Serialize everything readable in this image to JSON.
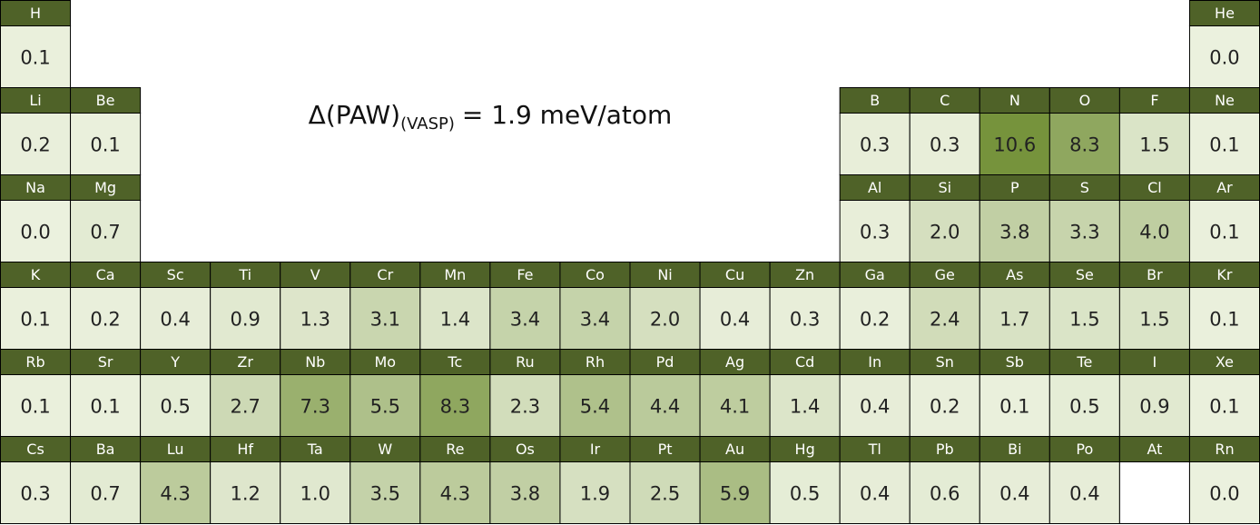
{
  "title": {
    "main": "Δ(PAW)",
    "sub": "(VASP)",
    "rest": "= 1.9 meV/atom"
  },
  "color_scale": [
    "#ebf1de",
    "#76933c"
  ],
  "header_color": "#4f6228",
  "periods": [
    [
      {
        "s": "H",
        "v": "0.1"
      },
      {
        "s": "He",
        "v": "0.0"
      }
    ],
    [
      {
        "s": "Li",
        "v": "0.2"
      },
      {
        "s": "Be",
        "v": "0.1"
      },
      {
        "s": "B",
        "v": "0.3"
      },
      {
        "s": "C",
        "v": "0.3"
      },
      {
        "s": "N",
        "v": "10.6"
      },
      {
        "s": "O",
        "v": "8.3"
      },
      {
        "s": "F",
        "v": "1.5"
      },
      {
        "s": "Ne",
        "v": "0.1"
      }
    ],
    [
      {
        "s": "Na",
        "v": "0.0"
      },
      {
        "s": "Mg",
        "v": "0.7"
      },
      {
        "s": "Al",
        "v": "0.3"
      },
      {
        "s": "Si",
        "v": "2.0"
      },
      {
        "s": "P",
        "v": "3.8"
      },
      {
        "s": "S",
        "v": "3.3"
      },
      {
        "s": "Cl",
        "v": "4.0"
      },
      {
        "s": "Ar",
        "v": "0.1"
      }
    ],
    [
      {
        "s": "K",
        "v": "0.1"
      },
      {
        "s": "Ca",
        "v": "0.2"
      },
      {
        "s": "Sc",
        "v": "0.4"
      },
      {
        "s": "Ti",
        "v": "0.9"
      },
      {
        "s": "V",
        "v": "1.3"
      },
      {
        "s": "Cr",
        "v": "3.1"
      },
      {
        "s": "Mn",
        "v": "1.4"
      },
      {
        "s": "Fe",
        "v": "3.4"
      },
      {
        "s": "Co",
        "v": "3.4"
      },
      {
        "s": "Ni",
        "v": "2.0"
      },
      {
        "s": "Cu",
        "v": "0.4"
      },
      {
        "s": "Zn",
        "v": "0.3"
      },
      {
        "s": "Ga",
        "v": "0.2"
      },
      {
        "s": "Ge",
        "v": "2.4"
      },
      {
        "s": "As",
        "v": "1.7"
      },
      {
        "s": "Se",
        "v": "1.5"
      },
      {
        "s": "Br",
        "v": "1.5"
      },
      {
        "s": "Kr",
        "v": "0.1"
      }
    ],
    [
      {
        "s": "Rb",
        "v": "0.1"
      },
      {
        "s": "Sr",
        "v": "0.1"
      },
      {
        "s": "Y",
        "v": "0.5"
      },
      {
        "s": "Zr",
        "v": "2.7"
      },
      {
        "s": "Nb",
        "v": "7.3"
      },
      {
        "s": "Mo",
        "v": "5.5"
      },
      {
        "s": "Tc",
        "v": "8.3"
      },
      {
        "s": "Ru",
        "v": "2.3"
      },
      {
        "s": "Rh",
        "v": "5.4"
      },
      {
        "s": "Pd",
        "v": "4.4"
      },
      {
        "s": "Ag",
        "v": "4.1"
      },
      {
        "s": "Cd",
        "v": "1.4"
      },
      {
        "s": "In",
        "v": "0.4"
      },
      {
        "s": "Sn",
        "v": "0.2"
      },
      {
        "s": "Sb",
        "v": "0.1"
      },
      {
        "s": "Te",
        "v": "0.5"
      },
      {
        "s": "I",
        "v": "0.9"
      },
      {
        "s": "Xe",
        "v": "0.1"
      }
    ],
    [
      {
        "s": "Cs",
        "v": "0.3"
      },
      {
        "s": "Ba",
        "v": "0.7"
      },
      {
        "s": "Lu",
        "v": "4.3"
      },
      {
        "s": "Hf",
        "v": "1.2"
      },
      {
        "s": "Ta",
        "v": "1.0"
      },
      {
        "s": "W",
        "v": "3.5"
      },
      {
        "s": "Re",
        "v": "4.3"
      },
      {
        "s": "Os",
        "v": "3.8"
      },
      {
        "s": "Ir",
        "v": "1.9"
      },
      {
        "s": "Pt",
        "v": "2.5"
      },
      {
        "s": "Au",
        "v": "5.9"
      },
      {
        "s": "Hg",
        "v": "0.5"
      },
      {
        "s": "Tl",
        "v": "0.4"
      },
      {
        "s": "Pb",
        "v": "0.6"
      },
      {
        "s": "Bi",
        "v": "0.4"
      },
      {
        "s": "Po",
        "v": "0.4"
      },
      {
        "s": "At",
        "v": null
      },
      {
        "s": "Rn",
        "v": "0.0"
      }
    ]
  ]
}
